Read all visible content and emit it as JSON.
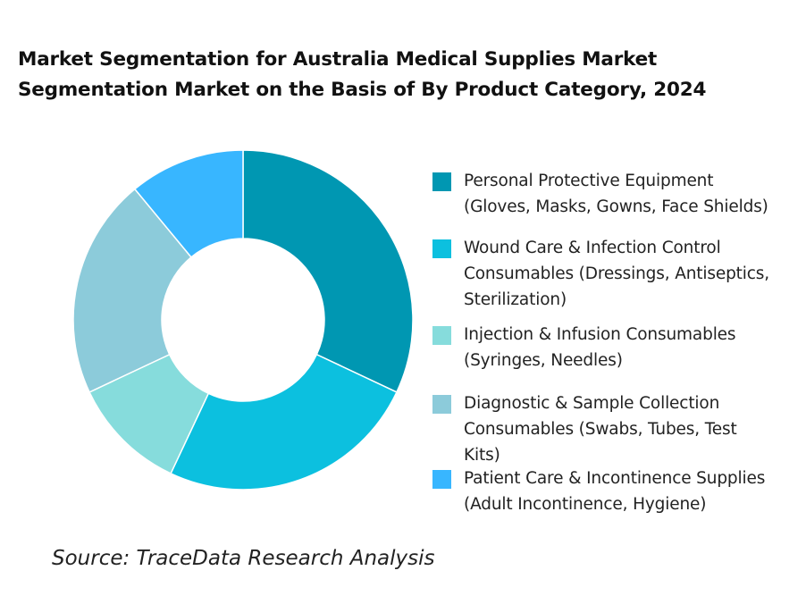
{
  "chart_data": {
    "type": "pie",
    "variant": "donut",
    "title_lines": [
      "Market Segmentation for Australia Medical Supplies Market",
      "Segmentation Market on the Basis of By Product Category, 2024"
    ],
    "legend_position": "right",
    "slices": [
      {
        "label_lines": [
          "Personal Protective Equipment",
          "(Gloves, Masks, Gowns, Face Shields)"
        ],
        "value": 32,
        "color": "#0097b2"
      },
      {
        "label_lines": [
          "Wound Care & Infection Control",
          "Consumables (Dressings, Antiseptics,",
          "Sterilization)"
        ],
        "value": 25,
        "color": "#0cc0df"
      },
      {
        "label_lines": [
          "Injection & Infusion Consumables",
          "(Syringes, Needles)"
        ],
        "value": 11,
        "color": "#86dcdc"
      },
      {
        "label_lines": [
          "Diagnostic & Sample Collection",
          "Consumables (Swabs, Tubes, Test",
          "Kits)"
        ],
        "value": 21,
        "color": "#8ccbda"
      },
      {
        "label_lines": [
          "Patient Care & Incontinence Supplies",
          "(Adult Incontinence, Hygiene)"
        ],
        "value": 11,
        "color": "#38b6ff"
      }
    ]
  },
  "source": "Source: TraceData Research Analysis"
}
